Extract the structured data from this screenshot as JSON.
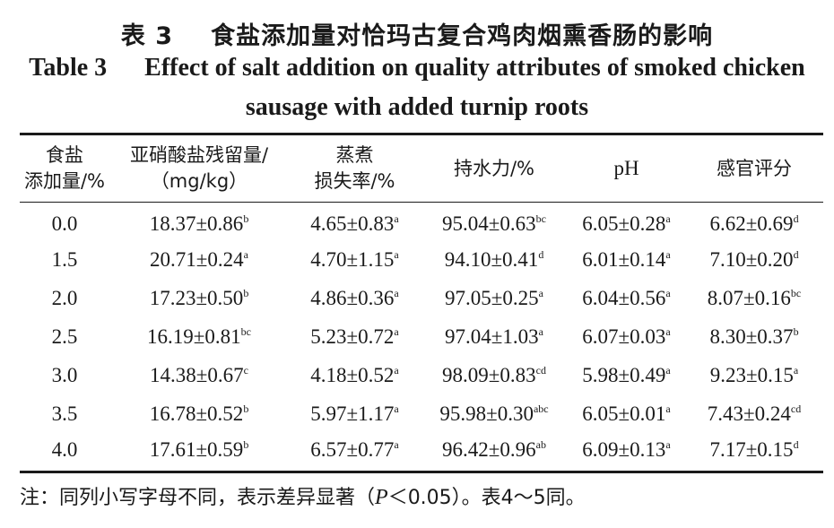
{
  "title": {
    "cn_number": "表 3",
    "cn_text": "食盐添加量对恰玛古复合鸡肉烟熏香肠的影响",
    "en_number": "Table 3",
    "en_line1": "Effect of salt addition on quality attributes of smoked chicken",
    "en_line2": "sausage with added turnip roots"
  },
  "headers": {
    "salt": [
      "食盐",
      "添加量/%"
    ],
    "nitrite": [
      "亚硝酸盐残留量/",
      "（mg/kg）"
    ],
    "cooking": [
      "蒸煮",
      "损失率/%"
    ],
    "whc": "持水力/%",
    "ph": "pH",
    "sensory": "感官评分"
  },
  "rows": [
    {
      "salt": "0.0",
      "nitrite": {
        "v": "18.37±0.86",
        "s": "b"
      },
      "cooking": {
        "v": "4.65±0.83",
        "s": "a"
      },
      "whc": {
        "v": "95.04±0.63",
        "s": "bc"
      },
      "ph": {
        "v": "6.05±0.28",
        "s": "a"
      },
      "sensory": {
        "v": "6.62±0.69",
        "s": "d"
      }
    },
    {
      "salt": "1.5",
      "nitrite": {
        "v": "20.71±0.24",
        "s": "a"
      },
      "cooking": {
        "v": "4.70±1.15",
        "s": "a"
      },
      "whc": {
        "v": "94.10±0.41",
        "s": "d"
      },
      "ph": {
        "v": "6.01±0.14",
        "s": "a"
      },
      "sensory": {
        "v": "7.10±0.20",
        "s": "d"
      }
    },
    {
      "salt": "2.0",
      "nitrite": {
        "v": "17.23±0.50",
        "s": "b"
      },
      "cooking": {
        "v": "4.86±0.36",
        "s": "a"
      },
      "whc": {
        "v": "97.05±0.25",
        "s": "a"
      },
      "ph": {
        "v": "6.04±0.56",
        "s": "a"
      },
      "sensory": {
        "v": "8.07±0.16",
        "s": "bc"
      }
    },
    {
      "salt": "2.5",
      "nitrite": {
        "v": "16.19±0.81",
        "s": "bc"
      },
      "cooking": {
        "v": "5.23±0.72",
        "s": "a"
      },
      "whc": {
        "v": "97.04±1.03",
        "s": "a"
      },
      "ph": {
        "v": "6.07±0.03",
        "s": "a"
      },
      "sensory": {
        "v": "8.30±0.37",
        "s": "b"
      }
    },
    {
      "salt": "3.0",
      "nitrite": {
        "v": "14.38±0.67",
        "s": "c"
      },
      "cooking": {
        "v": "4.18±0.52",
        "s": "a"
      },
      "whc": {
        "v": "98.09±0.83",
        "s": "cd"
      },
      "ph": {
        "v": "5.98±0.49",
        "s": "a"
      },
      "sensory": {
        "v": "9.23±0.15",
        "s": "a"
      }
    },
    {
      "salt": "3.5",
      "nitrite": {
        "v": "16.78±0.52",
        "s": "b"
      },
      "cooking": {
        "v": "5.97±1.17",
        "s": "a"
      },
      "whc": {
        "v": "95.98±0.30",
        "s": "abc"
      },
      "ph": {
        "v": "6.05±0.01",
        "s": "a"
      },
      "sensory": {
        "v": "7.43±0.24",
        "s": "cd"
      }
    },
    {
      "salt": "4.0",
      "nitrite": {
        "v": "17.61±0.59",
        "s": "b"
      },
      "cooking": {
        "v": "6.57±0.77",
        "s": "a"
      },
      "whc": {
        "v": "96.42±0.96",
        "s": "ab"
      },
      "ph": {
        "v": "6.09±0.13",
        "s": "a"
      },
      "sensory": {
        "v": "7.17±0.15",
        "s": "d"
      }
    }
  ],
  "note": {
    "prefix": "注：同列小写字母不同，表示差异显著（",
    "p": "P",
    "mid": "＜0.05）。表4～5同。"
  }
}
